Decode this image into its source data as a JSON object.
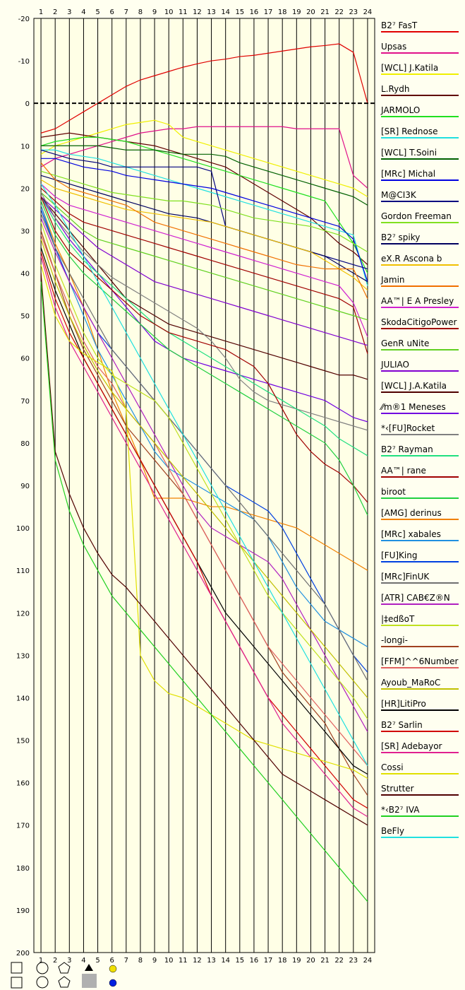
{
  "chart_data": {
    "type": "line",
    "laps": [
      1,
      2,
      3,
      4,
      5,
      6,
      7,
      8,
      9,
      10,
      11,
      12,
      13,
      14,
      15,
      16,
      17,
      18,
      19,
      20,
      21,
      22,
      23,
      24
    ],
    "y_ticks": [
      -20,
      -10,
      0,
      10,
      20,
      30,
      40,
      50,
      60,
      70,
      80,
      90,
      100,
      110,
      120,
      130,
      140,
      150,
      160,
      170,
      180,
      190,
      200
    ],
    "ylim": [
      -20,
      200
    ],
    "xlim": [
      1,
      24
    ],
    "zero_line": 0,
    "series": [
      {
        "name": "B2⁷ FasT",
        "color": "#e00000",
        "values": [
          7,
          6,
          4,
          2,
          0,
          -2,
          -4,
          -5.5,
          -6.5,
          -7.5,
          -8.5,
          -9.3,
          -10,
          -10.4,
          -11,
          -11.3,
          -11.8,
          -12.3,
          -12.8,
          -13.3,
          -13.6,
          -14,
          -12,
          0
        ]
      },
      {
        "name": "Upsas",
        "color": "#e0108a",
        "values": [
          15,
          13,
          12,
          11,
          10,
          9,
          8,
          7,
          6.5,
          6,
          6,
          5.5,
          5.5,
          5.5,
          5.5,
          5.5,
          5.5,
          5.5,
          6,
          6,
          6,
          6,
          17,
          20
        ]
      },
      {
        "name": "[WCL] J.Katila",
        "color": "#f0f000",
        "values": [
          12,
          10,
          9,
          8,
          7,
          6,
          5,
          4.5,
          4,
          5,
          8,
          9,
          10,
          11,
          12,
          13,
          14,
          15,
          16,
          17,
          18,
          19,
          20,
          22
        ]
      },
      {
        "name": "L.Rydh",
        "color": "#600000",
        "values": [
          8,
          7.5,
          7,
          7.5,
          8,
          8.5,
          9,
          9.5,
          10,
          11,
          12,
          13,
          14,
          15,
          17,
          19,
          21,
          23,
          25,
          27,
          30,
          33,
          35,
          38
        ]
      },
      {
        "name": "JARMOLO",
        "color": "#20e020",
        "values": [
          10,
          9,
          8.5,
          8,
          8,
          8.5,
          9,
          10,
          11,
          12,
          13,
          14,
          15,
          16,
          17,
          18,
          19,
          20,
          21,
          22,
          23,
          28,
          33,
          40
        ]
      },
      {
        "name": "[SR] Rednose",
        "color": "#20e0e0",
        "values": [
          11,
          11,
          12,
          12.5,
          13,
          14,
          15,
          16,
          17,
          18,
          19,
          20,
          21,
          22,
          23,
          24,
          25,
          26,
          27,
          28,
          29,
          30,
          31,
          43
        ]
      },
      {
        "name": "[WCL] T.Soini",
        "color": "#006000",
        "values": [
          10,
          10,
          10,
          10,
          10,
          10.5,
          11,
          11,
          11,
          11.5,
          12,
          12,
          12,
          12.5,
          14,
          15,
          16,
          17,
          18,
          19,
          20,
          21,
          22,
          24
        ]
      },
      {
        "name": "[MRc] Michal",
        "color": "#0000e0",
        "values": [
          13,
          13,
          14,
          15,
          15.5,
          16,
          17,
          17.5,
          18,
          18.5,
          19,
          19.5,
          20,
          21,
          22,
          23,
          24,
          25,
          26,
          27,
          28,
          29,
          32,
          42
        ]
      },
      {
        "name": "M@CI3K",
        "color": "#000080",
        "values": [
          11,
          12,
          13,
          13.5,
          14,
          15,
          15,
          15,
          15,
          15,
          15,
          15,
          16,
          29,
          30,
          31,
          32,
          33,
          34,
          35,
          36,
          37,
          38,
          39
        ]
      },
      {
        "name": "Gordon Freeman",
        "color": "#80e020",
        "values": [
          16,
          17,
          18,
          19,
          20,
          21,
          21.5,
          22,
          22.5,
          23,
          23,
          23.5,
          24,
          25,
          26,
          27,
          27.5,
          28,
          28.5,
          29,
          30,
          31,
          33,
          35
        ]
      },
      {
        "name": "B2⁷ spiky",
        "color": "#000060",
        "values": [
          17,
          18,
          19,
          20,
          21,
          22,
          23,
          24,
          25,
          26,
          26.5,
          27,
          28,
          29,
          30,
          31,
          32,
          33,
          34,
          35,
          36,
          38,
          40,
          42
        ]
      },
      {
        "name": "eX.R Ascona b",
        "color": "#f0c000",
        "values": [
          18,
          20,
          21,
          22,
          23,
          24,
          25,
          25.5,
          26,
          26.5,
          27,
          27.5,
          28,
          29,
          30,
          31,
          32,
          33,
          34,
          35,
          37,
          39,
          41,
          44
        ]
      },
      {
        "name": "Jamin",
        "color": "#f07000",
        "values": [
          14,
          18,
          20,
          21,
          22,
          23,
          24,
          26,
          28,
          29,
          30,
          31,
          32,
          33,
          34,
          35,
          36,
          37,
          38,
          38.5,
          39,
          39,
          39,
          46
        ]
      },
      {
        "name": "AA™| E A Presley",
        "color": "#d020d0",
        "values": [
          19,
          22,
          24,
          25,
          26,
          27,
          28,
          29,
          30,
          31,
          32,
          33,
          34,
          35,
          36,
          37,
          38,
          39,
          40,
          41,
          42,
          43,
          47,
          55
        ]
      },
      {
        "name": "SkodaCitigoPower",
        "color": "#a00000",
        "values": [
          20,
          23,
          26,
          28,
          29,
          30,
          31,
          32,
          33,
          34,
          35,
          36,
          37,
          38,
          39,
          40,
          41,
          42,
          43,
          44,
          45,
          46,
          48,
          59
        ]
      },
      {
        "name": "GenR uNite",
        "color": "#60d020",
        "values": [
          21,
          24,
          27,
          30,
          32,
          33,
          34,
          35,
          36,
          37,
          38,
          39,
          40,
          41,
          42,
          43,
          44,
          45,
          46,
          47,
          48,
          49,
          50,
          51
        ]
      },
      {
        "name": "JULIAO",
        "color": "#8000d0",
        "values": [
          22,
          25,
          28,
          31,
          34,
          36,
          38,
          40,
          42,
          43,
          44,
          45,
          46,
          47,
          48,
          49,
          50,
          51,
          52,
          53,
          54,
          55,
          56,
          57
        ]
      },
      {
        "name": "[WCL] J.A.Katila",
        "color": "#500000",
        "values": [
          22,
          26,
          30,
          34,
          38,
          42,
          46,
          48,
          50,
          52,
          53,
          54,
          55,
          56,
          57,
          58,
          59,
          60,
          61,
          62,
          63,
          64,
          64,
          65
        ]
      },
      {
        "name": "⁄⁄m®1 Meneses",
        "color": "#7000e0",
        "values": [
          22,
          27,
          32,
          36,
          40,
          44,
          48,
          52,
          56,
          58,
          60,
          61,
          62,
          63,
          64,
          65,
          66,
          67,
          68,
          69,
          70,
          72,
          74,
          75
        ]
      },
      {
        "name": "*‹[FU]Rocket",
        "color": "#808080",
        "values": [
          21,
          27,
          31,
          35,
          38,
          41,
          43,
          45,
          47,
          49,
          51,
          53,
          56,
          60,
          65,
          68,
          70,
          71,
          72,
          73,
          74,
          75,
          76,
          77
        ]
      },
      {
        "name": "B2⁷ Rayman",
        "color": "#20e080",
        "values": [
          22,
          28,
          33,
          37,
          40,
          43,
          46,
          49,
          52,
          54,
          56,
          58,
          60,
          62,
          64,
          66,
          68,
          70,
          72,
          74,
          76,
          79,
          81,
          83
        ]
      },
      {
        "name": "AA™| rane",
        "color": "#a00000",
        "values": [
          22,
          30,
          35,
          38,
          41,
          44,
          47,
          50,
          52,
          54,
          55,
          56,
          57,
          58,
          60,
          62,
          66,
          72,
          78,
          82,
          85,
          87,
          90,
          94
        ]
      },
      {
        "name": "biroot",
        "color": "#20d040",
        "values": [
          23,
          31,
          36,
          40,
          43,
          46,
          49,
          52,
          55,
          58,
          60,
          62,
          64,
          66,
          68,
          70,
          72,
          74,
          76,
          78,
          80,
          84,
          90,
          97
        ]
      },
      {
        "name": "[AMG] derinus",
        "color": "#f08000",
        "values": [
          24,
          33,
          40,
          48,
          58,
          68,
          76,
          84,
          93,
          93,
          93,
          94,
          95,
          95,
          96,
          97,
          98,
          99,
          100,
          102,
          104,
          106,
          108,
          110
        ]
      },
      {
        "name": "[MRc] xabales",
        "color": "#2090e0",
        "values": [
          24,
          34,
          42,
          50,
          58,
          64,
          70,
          76,
          82,
          86,
          88,
          90,
          92,
          94,
          96,
          98,
          102,
          108,
          114,
          118,
          122,
          124,
          126,
          128
        ]
      },
      {
        "name": "[FU]King",
        "color": "#0040e0",
        "values": [
          25,
          34,
          42,
          48,
          54,
          58,
          62,
          66,
          70,
          74,
          78,
          82,
          86,
          90,
          92,
          94,
          96,
          100,
          106,
          112,
          118,
          124,
          130,
          134
        ]
      },
      {
        "name": "[MRc]FinUK",
        "color": "#707070",
        "values": [
          26,
          34,
          40,
          46,
          52,
          58,
          62,
          66,
          70,
          74,
          78,
          82,
          86,
          90,
          94,
          98,
          102,
          106,
          110,
          114,
          118,
          124,
          130,
          136
        ]
      },
      {
        "name": "[ATR] CAB€Z®N",
        "color": "#b020c0",
        "values": [
          27,
          35,
          42,
          48,
          54,
          60,
          66,
          72,
          78,
          84,
          90,
          96,
          100,
          102,
          104,
          106,
          108,
          112,
          118,
          124,
          130,
          136,
          142,
          148
        ]
      },
      {
        "name": "|‡edßoT",
        "color": "#c0e020",
        "values": [
          28,
          38,
          46,
          54,
          60,
          64,
          66,
          68,
          70,
          74,
          80,
          86,
          92,
          98,
          104,
          110,
          116,
          120,
          124,
          128,
          132,
          136,
          140,
          145
        ]
      },
      {
        "name": "-longi-",
        "color": "#a04020",
        "values": [
          30,
          40,
          50,
          58,
          64,
          70,
          76,
          80,
          84,
          88,
          92,
          98,
          104,
          110,
          116,
          122,
          128,
          134,
          138,
          142,
          146,
          152,
          158,
          163
        ]
      },
      {
        "name": "[FFM]^^6Number",
        "color": "#e06060",
        "values": [
          31,
          40,
          48,
          56,
          62,
          66,
          72,
          76,
          80,
          86,
          92,
          98,
          104,
          110,
          116,
          122,
          128,
          132,
          136,
          140,
          144,
          148,
          152,
          156
        ]
      },
      {
        "name": "Ayoub_MaRoC",
        "color": "#c0c000",
        "values": [
          32,
          42,
          50,
          57,
          63,
          68,
          72,
          76,
          80,
          84,
          88,
          92,
          96,
          100,
          104,
          108,
          112,
          116,
          120,
          124,
          128,
          132,
          136,
          140
        ]
      },
      {
        "name": "[HR]LitiPro",
        "color": "#000000",
        "values": [
          34,
          44,
          52,
          60,
          66,
          72,
          78,
          84,
          90,
          96,
          102,
          108,
          114,
          120,
          124,
          128,
          132,
          136,
          140,
          144,
          148,
          152,
          156,
          158
        ]
      },
      {
        "name": "B2⁷ Sarlin",
        "color": "#d00000",
        "values": [
          35,
          46,
          54,
          60,
          66,
          72,
          78,
          84,
          90,
          96,
          102,
          108,
          116,
          122,
          128,
          134,
          140,
          144,
          148,
          152,
          156,
          160,
          164,
          166
        ]
      },
      {
        "name": "[SR] Adebayor",
        "color": "#e02090",
        "values": [
          36,
          48,
          56,
          62,
          68,
          74,
          80,
          86,
          92,
          98,
          104,
          110,
          116,
          122,
          128,
          134,
          140,
          146,
          150,
          154,
          158,
          162,
          166,
          168
        ]
      },
      {
        "name": "Cossi",
        "color": "#e0e000",
        "values": [
          38,
          50,
          56,
          59,
          61,
          63,
          72,
          130,
          136,
          139,
          140,
          142,
          144,
          146,
          148,
          150,
          151,
          152,
          153,
          154,
          155,
          156,
          157,
          159
        ]
      },
      {
        "name": "Strutter",
        "color": "#500000",
        "values": [
          40,
          82,
          92,
          100,
          106,
          111,
          114,
          118,
          122,
          126,
          130,
          134,
          138,
          142,
          146,
          150,
          154,
          158,
          160,
          162,
          164,
          166,
          168,
          170
        ]
      },
      {
        "name": "*‹B2⁷ IVA",
        "color": "#20d020",
        "values": [
          42,
          84,
          96,
          104,
          110,
          116,
          120,
          124,
          128,
          132,
          136,
          140,
          144,
          148,
          152,
          156,
          160,
          164,
          168,
          172,
          176,
          180,
          184,
          188
        ]
      },
      {
        "name": "BeFly",
        "color": "#20e0e0",
        "values": [
          19,
          24,
          30,
          36,
          42,
          48,
          54,
          60,
          66,
          72,
          78,
          84,
          90,
          96,
          102,
          108,
          114,
          120,
          126,
          132,
          138,
          144,
          150,
          156
        ]
      }
    ]
  }
}
